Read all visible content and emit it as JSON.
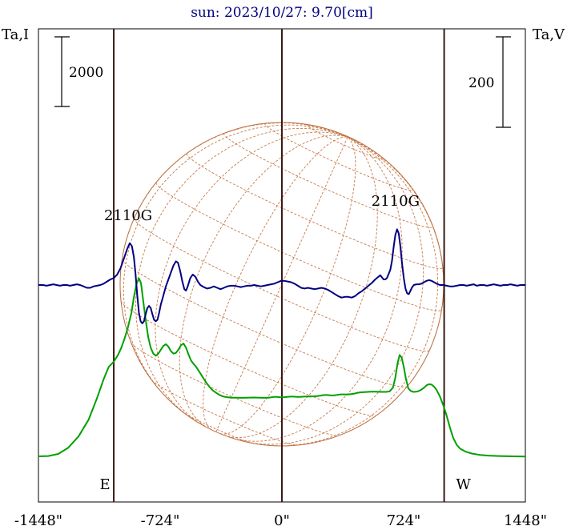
{
  "chart_data": {
    "type": "line",
    "title": "sun: 2023/10/27: 9.70[cm]",
    "left_axis_label": "Ta,I",
    "right_axis_label": "Ta,V",
    "left_scale_bar_label": "2000",
    "right_scale_bar_label": "200",
    "x_ticks": [
      {
        "value": -1448,
        "label": "-1448\""
      },
      {
        "value": -724,
        "label": "-724\""
      },
      {
        "value": 0,
        "label": "0\""
      },
      {
        "value": 724,
        "label": "724\""
      },
      {
        "value": 1448,
        "label": "1448\""
      }
    ],
    "xlim": [
      -1448,
      1448
    ],
    "vertical_markers": [
      {
        "x": -1000,
        "label": "E"
      },
      {
        "x": 0,
        "label": ""
      },
      {
        "x": 965,
        "label": "W"
      }
    ],
    "region_labels": [
      {
        "x": -900,
        "label": "2110G"
      },
      {
        "x": 690,
        "label": "2110G"
      }
    ],
    "series": [
      {
        "axis": "I",
        "color": "#00a000",
        "points": [
          [
            -1448,
            230
          ],
          [
            -1390,
            240
          ],
          [
            -1330,
            300
          ],
          [
            -1270,
            480
          ],
          [
            -1210,
            800
          ],
          [
            -1150,
            1280
          ],
          [
            -1100,
            1900
          ],
          [
            -1060,
            2450
          ],
          [
            -1030,
            2800
          ],
          [
            -1000,
            2950
          ],
          [
            -975,
            3140
          ],
          [
            -955,
            3350
          ],
          [
            -935,
            3620
          ],
          [
            -915,
            3950
          ],
          [
            -895,
            4350
          ],
          [
            -880,
            4800
          ],
          [
            -865,
            5180
          ],
          [
            -850,
            5340
          ],
          [
            -838,
            5200
          ],
          [
            -825,
            4700
          ],
          [
            -810,
            4150
          ],
          [
            -795,
            3650
          ],
          [
            -780,
            3350
          ],
          [
            -765,
            3180
          ],
          [
            -750,
            3120
          ],
          [
            -735,
            3180
          ],
          [
            -720,
            3290
          ],
          [
            -705,
            3400
          ],
          [
            -690,
            3450
          ],
          [
            -675,
            3380
          ],
          [
            -660,
            3250
          ],
          [
            -645,
            3180
          ],
          [
            -630,
            3200
          ],
          [
            -615,
            3300
          ],
          [
            -600,
            3420
          ],
          [
            -585,
            3470
          ],
          [
            -570,
            3350
          ],
          [
            -555,
            3150
          ],
          [
            -540,
            2980
          ],
          [
            -525,
            2880
          ],
          [
            -510,
            2800
          ],
          [
            -490,
            2650
          ],
          [
            -470,
            2500
          ],
          [
            -450,
            2350
          ],
          [
            -430,
            2220
          ],
          [
            -410,
            2120
          ],
          [
            -390,
            2050
          ],
          [
            -370,
            1990
          ],
          [
            -350,
            1950
          ],
          [
            -330,
            1930
          ],
          [
            -310,
            1920
          ],
          [
            -290,
            1915
          ],
          [
            -270,
            1912
          ],
          [
            -250,
            1910
          ],
          [
            -230,
            1910
          ],
          [
            -210,
            1915
          ],
          [
            -190,
            1918
          ],
          [
            -170,
            1920
          ],
          [
            -150,
            1918
          ],
          [
            -130,
            1915
          ],
          [
            -110,
            1910
          ],
          [
            -90,
            1910
          ],
          [
            -70,
            1920
          ],
          [
            -50,
            1935
          ],
          [
            -30,
            1935
          ],
          [
            -10,
            1925
          ],
          [
            10,
            1925
          ],
          [
            30,
            1935
          ],
          [
            50,
            1945
          ],
          [
            70,
            1945
          ],
          [
            90,
            1935
          ],
          [
            110,
            1935
          ],
          [
            130,
            1945
          ],
          [
            150,
            1950
          ],
          [
            170,
            1950
          ],
          [
            190,
            1955
          ],
          [
            210,
            1960
          ],
          [
            230,
            1975
          ],
          [
            250,
            1990
          ],
          [
            270,
            1990
          ],
          [
            290,
            1980
          ],
          [
            310,
            1980
          ],
          [
            330,
            1995
          ],
          [
            350,
            2010
          ],
          [
            370,
            2010
          ],
          [
            390,
            2005
          ],
          [
            410,
            2015
          ],
          [
            430,
            2030
          ],
          [
            450,
            2055
          ],
          [
            470,
            2070
          ],
          [
            490,
            2075
          ],
          [
            510,
            2080
          ],
          [
            530,
            2085
          ],
          [
            560,
            2085
          ],
          [
            590,
            2080
          ],
          [
            620,
            2080
          ],
          [
            640,
            2095
          ],
          [
            660,
            2200
          ],
          [
            675,
            2500
          ],
          [
            688,
            2900
          ],
          [
            700,
            3140
          ],
          [
            712,
            3070
          ],
          [
            725,
            2800
          ],
          [
            738,
            2450
          ],
          [
            752,
            2180
          ],
          [
            768,
            2100
          ],
          [
            782,
            2080
          ],
          [
            798,
            2085
          ],
          [
            812,
            2100
          ],
          [
            828,
            2140
          ],
          [
            845,
            2200
          ],
          [
            860,
            2270
          ],
          [
            875,
            2300
          ],
          [
            890,
            2290
          ],
          [
            905,
            2230
          ],
          [
            920,
            2140
          ],
          [
            940,
            1950
          ],
          [
            960,
            1700
          ],
          [
            980,
            1400
          ],
          [
            1000,
            1050
          ],
          [
            1020,
            750
          ],
          [
            1040,
            560
          ],
          [
            1060,
            450
          ],
          [
            1090,
            370
          ],
          [
            1130,
            310
          ],
          [
            1180,
            270
          ],
          [
            1230,
            250
          ],
          [
            1290,
            238
          ],
          [
            1350,
            232
          ],
          [
            1410,
            228
          ],
          [
            1448,
            226
          ]
        ]
      },
      {
        "axis": "V",
        "color": "#000080",
        "points": [
          [
            -1448,
            0
          ],
          [
            -1420,
            0
          ],
          [
            -1400,
            -1
          ],
          [
            -1380,
            0
          ],
          [
            -1360,
            1
          ],
          [
            -1340,
            0
          ],
          [
            -1320,
            -1
          ],
          [
            -1300,
            0
          ],
          [
            -1280,
            0
          ],
          [
            -1260,
            -1
          ],
          [
            -1240,
            0
          ],
          [
            -1220,
            1
          ],
          [
            -1200,
            0
          ],
          [
            -1180,
            -2
          ],
          [
            -1160,
            -4
          ],
          [
            -1140,
            -4
          ],
          [
            -1120,
            -2
          ],
          [
            -1100,
            -1
          ],
          [
            -1080,
            0
          ],
          [
            -1060,
            2
          ],
          [
            -1040,
            5
          ],
          [
            -1020,
            8
          ],
          [
            -1000,
            10
          ],
          [
            -980,
            15
          ],
          [
            -960,
            24
          ],
          [
            -940,
            38
          ],
          [
            -920,
            52
          ],
          [
            -905,
            60
          ],
          [
            -892,
            56
          ],
          [
            -880,
            40
          ],
          [
            -870,
            15
          ],
          [
            -860,
            -15
          ],
          [
            -850,
            -40
          ],
          [
            -840,
            -52
          ],
          [
            -830,
            -55
          ],
          [
            -820,
            -52
          ],
          [
            -810,
            -42
          ],
          [
            -800,
            -33
          ],
          [
            -790,
            -30
          ],
          [
            -780,
            -33
          ],
          [
            -770,
            -42
          ],
          [
            -760,
            -50
          ],
          [
            -750,
            -52
          ],
          [
            -740,
            -50
          ],
          [
            -730,
            -40
          ],
          [
            -720,
            -28
          ],
          [
            -705,
            -15
          ],
          [
            -690,
            -2
          ],
          [
            -675,
            8
          ],
          [
            -660,
            18
          ],
          [
            -645,
            28
          ],
          [
            -630,
            34
          ],
          [
            -618,
            32
          ],
          [
            -605,
            20
          ],
          [
            -592,
            5
          ],
          [
            -580,
            -6
          ],
          [
            -570,
            -8
          ],
          [
            -560,
            -2
          ],
          [
            -545,
            10
          ],
          [
            -530,
            15
          ],
          [
            -515,
            12
          ],
          [
            -500,
            5
          ],
          [
            -485,
            0
          ],
          [
            -465,
            -3
          ],
          [
            -445,
            -5
          ],
          [
            -425,
            -4
          ],
          [
            -405,
            -2
          ],
          [
            -385,
            -4
          ],
          [
            -365,
            -6
          ],
          [
            -345,
            -4
          ],
          [
            -325,
            -2
          ],
          [
            -305,
            -1
          ],
          [
            -285,
            -1
          ],
          [
            -265,
            -2
          ],
          [
            -245,
            -3
          ],
          [
            -225,
            -2
          ],
          [
            -205,
            -1
          ],
          [
            -185,
            -1
          ],
          [
            -165,
            0
          ],
          [
            -145,
            -1
          ],
          [
            -125,
            -2
          ],
          [
            -105,
            -1
          ],
          [
            -85,
            0
          ],
          [
            -65,
            1
          ],
          [
            -45,
            2
          ],
          [
            -25,
            4
          ],
          [
            -5,
            6
          ],
          [
            15,
            6
          ],
          [
            35,
            5
          ],
          [
            55,
            4
          ],
          [
            75,
            2
          ],
          [
            95,
            -1
          ],
          [
            115,
            -4
          ],
          [
            135,
            -5
          ],
          [
            155,
            -4
          ],
          [
            175,
            -5
          ],
          [
            195,
            -6
          ],
          [
            215,
            -5
          ],
          [
            235,
            -4
          ],
          [
            255,
            -5
          ],
          [
            275,
            -7
          ],
          [
            295,
            -10
          ],
          [
            315,
            -13
          ],
          [
            335,
            -16
          ],
          [
            355,
            -18
          ],
          [
            375,
            -17
          ],
          [
            395,
            -17
          ],
          [
            415,
            -18
          ],
          [
            435,
            -16
          ],
          [
            455,
            -12
          ],
          [
            475,
            -9
          ],
          [
            495,
            -5
          ],
          [
            515,
            -1
          ],
          [
            535,
            3
          ],
          [
            555,
            8
          ],
          [
            575,
            12
          ],
          [
            585,
            14
          ],
          [
            595,
            11
          ],
          [
            605,
            8
          ],
          [
            615,
            8
          ],
          [
            625,
            10
          ],
          [
            635,
            16
          ],
          [
            645,
            22
          ],
          [
            655,
            35
          ],
          [
            665,
            55
          ],
          [
            675,
            72
          ],
          [
            685,
            80
          ],
          [
            695,
            74
          ],
          [
            705,
            55
          ],
          [
            715,
            30
          ],
          [
            725,
            10
          ],
          [
            735,
            -5
          ],
          [
            745,
            -12
          ],
          [
            755,
            -13
          ],
          [
            765,
            -8
          ],
          [
            775,
            -3
          ],
          [
            785,
            0
          ],
          [
            800,
            1
          ],
          [
            815,
            1
          ],
          [
            830,
            2
          ],
          [
            845,
            4
          ],
          [
            860,
            6
          ],
          [
            875,
            7
          ],
          [
            890,
            6
          ],
          [
            905,
            4
          ],
          [
            920,
            2
          ],
          [
            940,
            0
          ],
          [
            960,
            0
          ],
          [
            980,
            -1
          ],
          [
            1000,
            -2
          ],
          [
            1020,
            -2
          ],
          [
            1040,
            -1
          ],
          [
            1060,
            0
          ],
          [
            1080,
            0
          ],
          [
            1100,
            -1
          ],
          [
            1120,
            0
          ],
          [
            1140,
            1
          ],
          [
            1160,
            -1
          ],
          [
            1180,
            0
          ],
          [
            1200,
            0
          ],
          [
            1220,
            -1
          ],
          [
            1240,
            0
          ],
          [
            1260,
            1
          ],
          [
            1280,
            0
          ],
          [
            1300,
            -1
          ],
          [
            1320,
            0
          ],
          [
            1340,
            0
          ],
          [
            1360,
            1
          ],
          [
            1380,
            0
          ],
          [
            1400,
            -1
          ],
          [
            1420,
            0
          ],
          [
            1448,
            0
          ]
        ]
      }
    ]
  }
}
